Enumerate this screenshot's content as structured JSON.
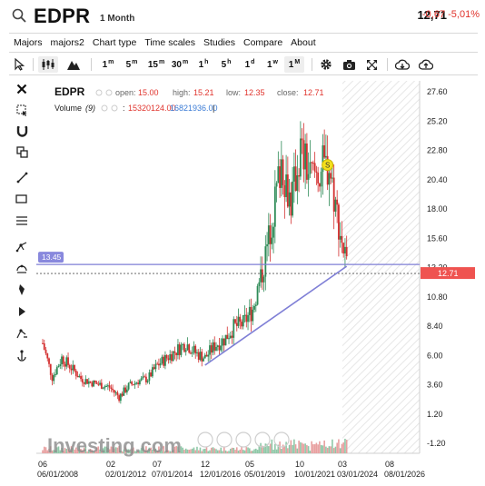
{
  "header": {
    "symbol": "EDPR",
    "timeframe": "1 Month",
    "price": "12,71",
    "change": "-0,67 -5,01%"
  },
  "menu": [
    "Majors",
    "majors2",
    "Chart type",
    "Time scales",
    "Studies",
    "Compare",
    "About"
  ],
  "toolbar": {
    "intervals": [
      {
        "base": "1",
        "sup": "m"
      },
      {
        "base": "5",
        "sup": "m"
      },
      {
        "base": "15",
        "sup": "m"
      },
      {
        "base": "30",
        "sup": "m"
      },
      {
        "base": "1",
        "sup": "h"
      },
      {
        "base": "5",
        "sup": "h"
      },
      {
        "base": "1",
        "sup": "d"
      },
      {
        "base": "1",
        "sup": "w"
      },
      {
        "base": "1",
        "sup": "M"
      }
    ],
    "active_interval": "1M"
  },
  "legend": {
    "symbol": "EDPR",
    "open_label": "open:",
    "open": "15.00",
    "high_label": "high:",
    "high": "15.21",
    "low_label": "low:",
    "low": "12.35",
    "close_label": "close:",
    "close": "12.71",
    "volume_label": "Volume",
    "volume_param": "(9)",
    "volume_values": [
      "15320124.00",
      "16821936.00"
    ]
  },
  "y_axis": {
    "ticks": [
      "27.60",
      "25.20",
      "22.80",
      "20.40",
      "18.00",
      "15.60",
      "13.20",
      "10.80",
      "8.40",
      "6.00",
      "3.60",
      "1.20",
      "-1.20"
    ],
    "price_tag": "12.71",
    "level_tag": "13.45"
  },
  "x_axis": {
    "top_labels": [
      "06",
      "02",
      "07",
      "12",
      "05",
      "10",
      "03",
      "08"
    ],
    "dates": [
      "06/01/2008",
      "02/01/2012",
      "07/01/2014",
      "12/01/2016",
      "05/01/2019",
      "10/01/2021",
      "03/01/2024",
      "08/01/2026"
    ]
  },
  "chart_data": {
    "type": "candlestick",
    "symbol": "EDPR",
    "interval": "1 Month",
    "y_range": [
      -1.2,
      27.6
    ],
    "last_close": 12.71,
    "horizontal_line": 13.45,
    "trendline": {
      "from": [
        "12/2016",
        5.2
      ],
      "to": [
        "05/2024",
        13.3
      ]
    },
    "marker": {
      "label": "S",
      "date": "05/2023",
      "price": 21.6
    },
    "series": [
      {
        "name": "price",
        "x": [
          "06/2008",
          "12/2008",
          "06/2009",
          "12/2009",
          "06/2010",
          "12/2010",
          "06/2011",
          "12/2011",
          "06/2012",
          "12/2012",
          "06/2013",
          "12/2013",
          "06/2014",
          "12/2014",
          "06/2015",
          "12/2015",
          "06/2016",
          "12/2016",
          "06/2017",
          "12/2017",
          "06/2018",
          "12/2018",
          "06/2019",
          "12/2019",
          "06/2020",
          "12/2020",
          "06/2021",
          "12/2021",
          "06/2022",
          "12/2022",
          "06/2023",
          "12/2023",
          "06/2024"
        ],
        "values": [
          7.0,
          4.2,
          5.8,
          5.0,
          4.1,
          3.8,
          3.6,
          3.4,
          2.6,
          3.5,
          3.9,
          4.1,
          5.2,
          5.8,
          6.4,
          7.0,
          6.2,
          5.8,
          6.8,
          7.3,
          8.3,
          8.6,
          9.8,
          12.8,
          17.0,
          22.0,
          18.5,
          22.8,
          20.6,
          21.2,
          21.6,
          16.8,
          12.71
        ]
      }
    ],
    "grid": false
  },
  "colors": {
    "up": "#2e8b57",
    "down": "#d32f2f",
    "accent_level": "#7f7fd6",
    "price_tag": "#ef5350",
    "change_negative": "#e0332c"
  },
  "watermark": "Investing.com"
}
